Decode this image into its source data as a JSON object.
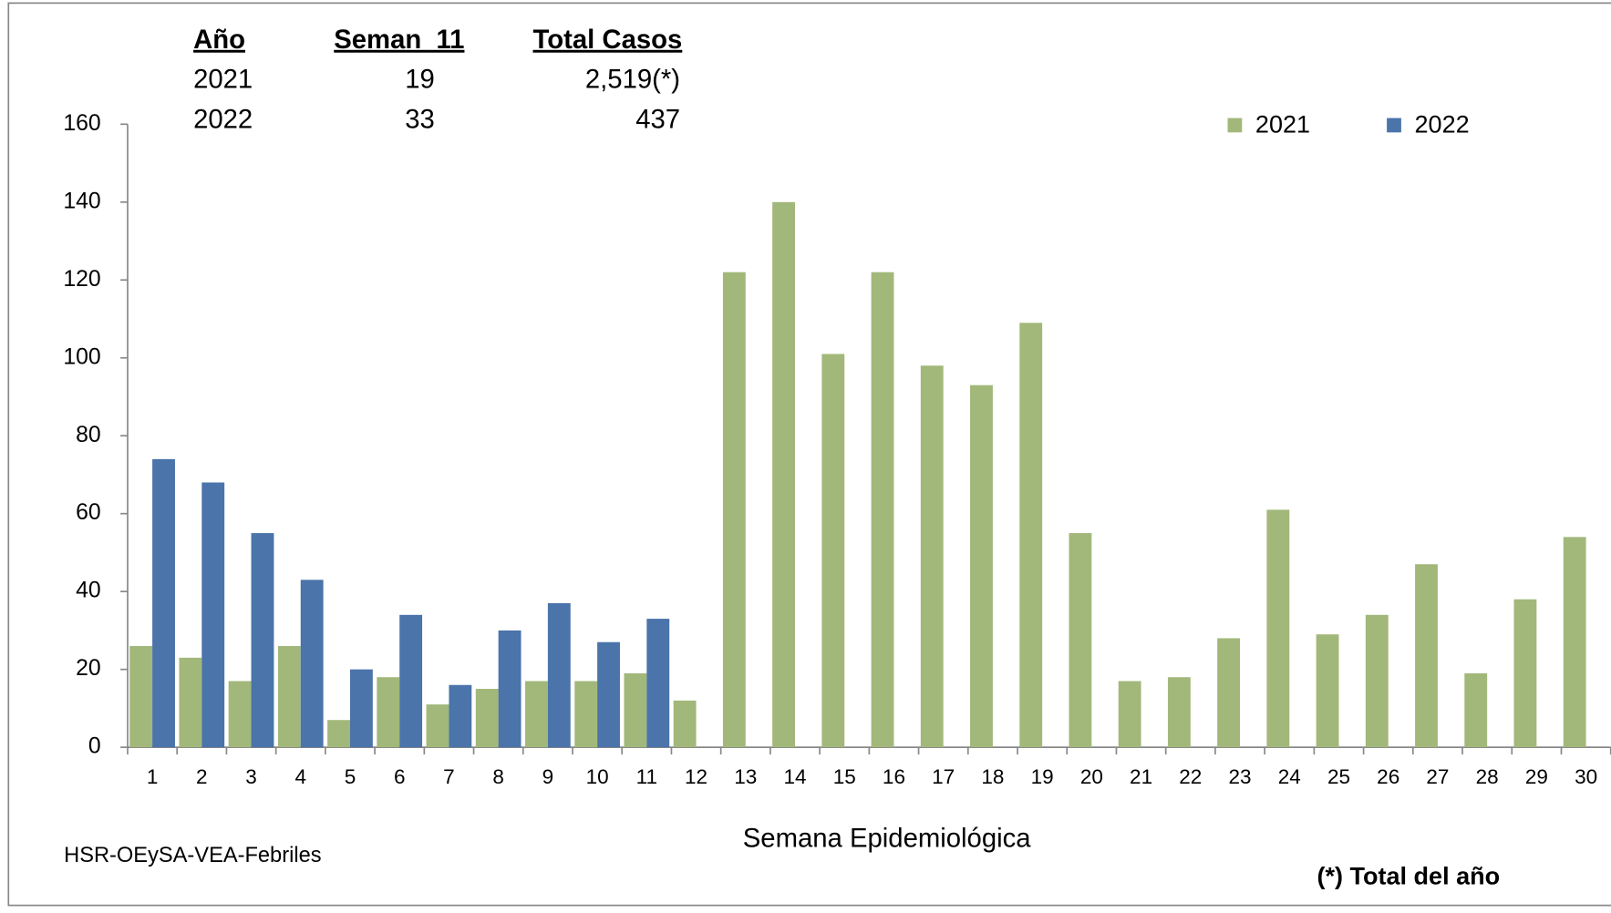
{
  "chart_data": {
    "type": "bar",
    "summary_table": {
      "header": [
        "Año",
        "Seman  11",
        "Total Casos"
      ],
      "rows": [
        [
          "2021",
          19,
          "2,519(*)"
        ],
        [
          "2022",
          33,
          "437"
        ]
      ]
    },
    "x_label": "Semana Epidemiológica",
    "source": "HSR-OEySA-VEA-Febriles",
    "footnote": "(*) Total del año",
    "categories": [
      "1",
      "2",
      "3",
      "4",
      "5",
      "6",
      "7",
      "8",
      "9",
      "10",
      "11",
      "12",
      "13",
      "14",
      "15",
      "16",
      "17",
      "18",
      "19",
      "20",
      "21",
      "22",
      "23",
      "24",
      "25",
      "26",
      "27",
      "28",
      "29",
      "30"
    ],
    "series": [
      {
        "name": "2021",
        "color": "#a2b87a",
        "values": [
          26,
          23,
          17,
          26,
          7,
          18,
          11,
          15,
          17,
          17,
          19,
          12,
          122,
          140,
          101,
          122,
          98,
          93,
          109,
          55,
          17,
          18,
          28,
          61,
          29,
          34,
          47,
          19,
          38,
          54
        ]
      },
      {
        "name": "2022",
        "color": "#4a74aa",
        "values": [
          74,
          68,
          55,
          43,
          20,
          34,
          16,
          30,
          37,
          27,
          33,
          null,
          null,
          null,
          null,
          null,
          null,
          null,
          null,
          null,
          null,
          null,
          null,
          null,
          null,
          null,
          null,
          null,
          null,
          null
        ]
      }
    ],
    "ylim": [
      0,
      160
    ],
    "yticks": [
      0,
      20,
      40,
      60,
      80,
      100,
      120,
      140,
      160
    ],
    "grid": false,
    "legend": "top-right"
  }
}
